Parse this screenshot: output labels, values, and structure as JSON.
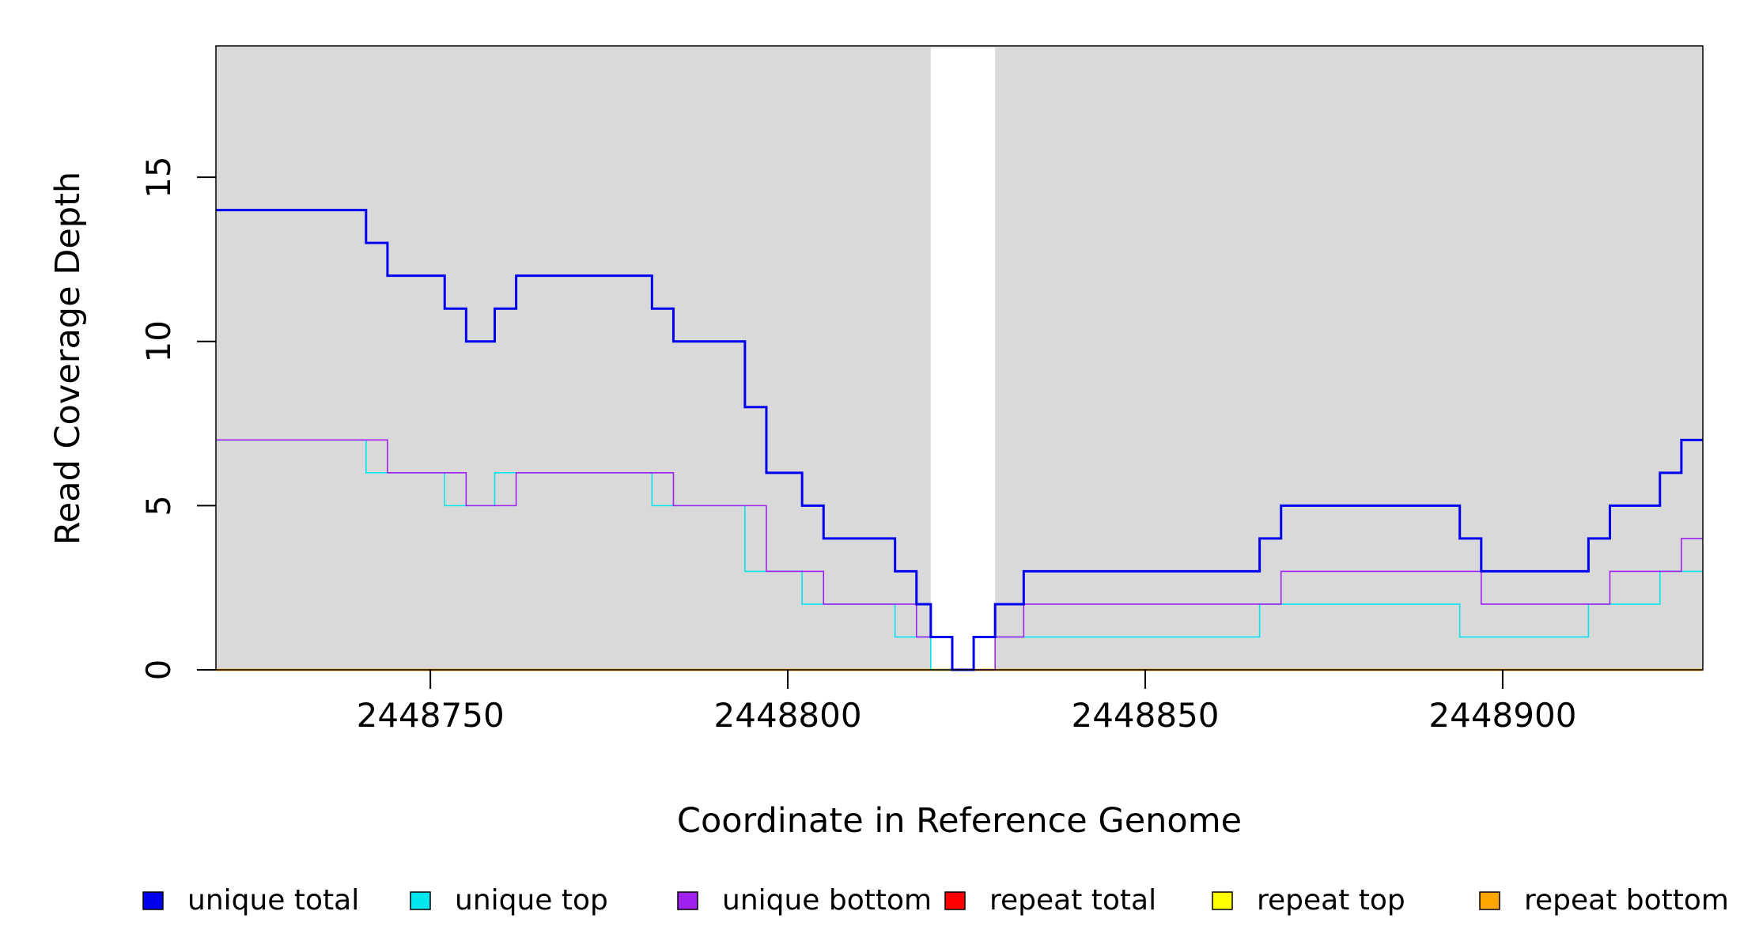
{
  "chart_data": {
    "type": "line",
    "step": true,
    "xlabel": "Coordinate in Reference Genome",
    "ylabel": "Read Coverage Depth",
    "xlim": [
      2448720,
      2448928
    ],
    "ylim": [
      0,
      19
    ],
    "x_ticks": [
      2448750,
      2448800,
      2448850,
      2448900
    ],
    "y_ticks": [
      0,
      5,
      10,
      15
    ],
    "x_tick_labels": [
      "2448750",
      "2448800",
      "2448850",
      "2448900"
    ],
    "y_tick_labels": [
      "0",
      "5",
      "10",
      "15"
    ],
    "background_color": "#d9d9d9",
    "unshaded_region": [
      2448820,
      2448829
    ],
    "legend_position": "bottom",
    "series": [
      {
        "name": "unique total",
        "color": "#0000ee",
        "points": [
          [
            2448720,
            14
          ],
          [
            2448741,
            13
          ],
          [
            2448744,
            12
          ],
          [
            2448752,
            11
          ],
          [
            2448755,
            10
          ],
          [
            2448759,
            11
          ],
          [
            2448762,
            12
          ],
          [
            2448781,
            11
          ],
          [
            2448784,
            10
          ],
          [
            2448794,
            8
          ],
          [
            2448797,
            6
          ],
          [
            2448802,
            5
          ],
          [
            2448805,
            4
          ],
          [
            2448815,
            3
          ],
          [
            2448818,
            2
          ],
          [
            2448820,
            1
          ],
          [
            2448823,
            0
          ],
          [
            2448826,
            1
          ],
          [
            2448829,
            2
          ],
          [
            2448833,
            3
          ],
          [
            2448866,
            4
          ],
          [
            2448869,
            5
          ],
          [
            2448894,
            4
          ],
          [
            2448897,
            3
          ],
          [
            2448912,
            4
          ],
          [
            2448915,
            5
          ],
          [
            2448922,
            6
          ],
          [
            2448925,
            7
          ],
          [
            2448928,
            7
          ]
        ]
      },
      {
        "name": "unique top",
        "color": "#00e5ee",
        "points": [
          [
            2448720,
            7
          ],
          [
            2448741,
            6
          ],
          [
            2448752,
            5
          ],
          [
            2448756,
            5
          ],
          [
            2448759,
            6
          ],
          [
            2448781,
            5
          ],
          [
            2448794,
            3
          ],
          [
            2448802,
            2
          ],
          [
            2448805,
            2
          ],
          [
            2448815,
            1
          ],
          [
            2448820,
            0
          ],
          [
            2448826,
            1
          ],
          [
            2448829,
            1
          ],
          [
            2448866,
            2
          ],
          [
            2448894,
            1
          ],
          [
            2448912,
            2
          ],
          [
            2448922,
            3
          ],
          [
            2448928,
            3
          ]
        ]
      },
      {
        "name": "unique bottom",
        "color": "#a020f0",
        "points": [
          [
            2448720,
            7
          ],
          [
            2448744,
            6
          ],
          [
            2448755,
            5
          ],
          [
            2448762,
            6
          ],
          [
            2448784,
            5
          ],
          [
            2448797,
            3
          ],
          [
            2448805,
            2
          ],
          [
            2448818,
            1
          ],
          [
            2448823,
            0
          ],
          [
            2448826,
            0
          ],
          [
            2448829,
            1
          ],
          [
            2448833,
            2
          ],
          [
            2448869,
            3
          ],
          [
            2448897,
            2
          ],
          [
            2448915,
            3
          ],
          [
            2448925,
            4
          ],
          [
            2448928,
            4
          ]
        ]
      },
      {
        "name": "repeat total",
        "color": "#ff0000",
        "points": [
          [
            2448720,
            0
          ],
          [
            2448928,
            0
          ]
        ]
      },
      {
        "name": "repeat top",
        "color": "#ffff00",
        "points": [
          [
            2448720,
            0
          ],
          [
            2448928,
            0
          ]
        ]
      },
      {
        "name": "repeat bottom",
        "color": "#ffa500",
        "points": [
          [
            2448720,
            0
          ],
          [
            2448928,
            0
          ]
        ]
      }
    ]
  }
}
